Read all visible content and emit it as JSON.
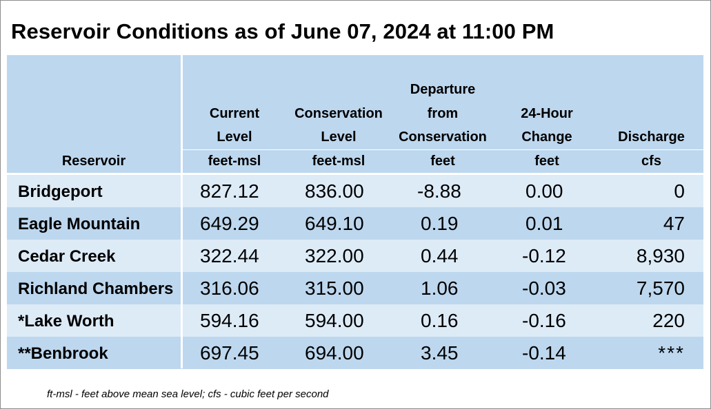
{
  "title": "Reservoir Conditions as of June 07, 2024 at 11:00 PM",
  "columns": [
    {
      "lines": [
        "Reservoir"
      ]
    },
    {
      "lines": [
        "Current",
        "Level",
        "feet-msl"
      ]
    },
    {
      "lines": [
        "Conservation",
        "Level",
        "feet-msl"
      ]
    },
    {
      "lines": [
        "Departure",
        "from",
        "Conservation",
        "feet"
      ]
    },
    {
      "lines": [
        "24-Hour",
        "Change",
        "feet"
      ]
    },
    {
      "lines": [
        "Discharge",
        "cfs"
      ]
    }
  ],
  "rows": [
    {
      "name": "Bridgeport",
      "current": "827.12",
      "conservation": "836.00",
      "departure": "-8.88",
      "change": "0.00",
      "discharge": "0"
    },
    {
      "name": "Eagle Mountain",
      "current": "649.29",
      "conservation": "649.10",
      "departure": "0.19",
      "change": "0.01",
      "discharge": "47"
    },
    {
      "name": "Cedar Creek",
      "current": "322.44",
      "conservation": "322.00",
      "departure": "0.44",
      "change": "-0.12",
      "discharge": "8,930"
    },
    {
      "name": "Richland Chambers",
      "current": "316.06",
      "conservation": "315.00",
      "departure": "1.06",
      "change": "-0.03",
      "discharge": "7,570"
    },
    {
      "name": "*Lake Worth",
      "current": "594.16",
      "conservation": "594.00",
      "departure": "0.16",
      "change": "-0.16",
      "discharge": "220"
    },
    {
      "name": "**Benbrook",
      "current": "697.45",
      "conservation": "694.00",
      "departure": "3.45",
      "change": "-0.14",
      "discharge": "***"
    }
  ],
  "footnote": "ft-msl - feet above mean sea level; cfs - cubic feet per second",
  "colors": {
    "header": "#bdd7ee",
    "row_dark": "#bdd7ee",
    "row_light": "#ddebf7"
  }
}
